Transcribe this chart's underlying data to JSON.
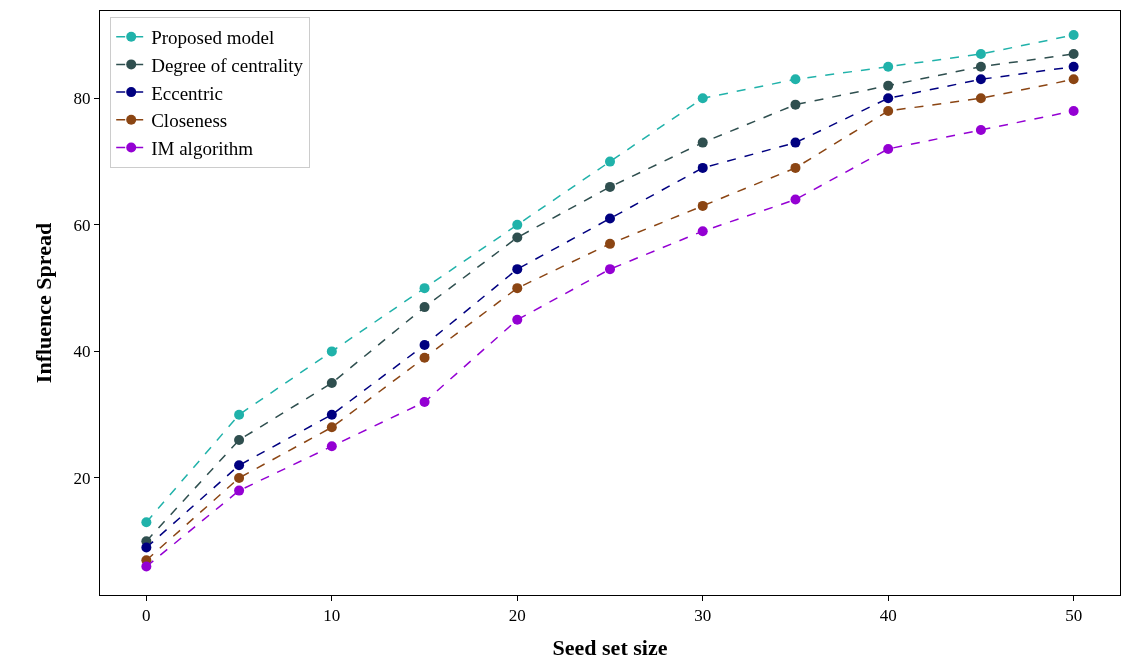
{
  "chart_data": {
    "type": "line",
    "xlabel": "Seed set size",
    "ylabel": "Influence Spread",
    "x": [
      0,
      5,
      10,
      15,
      20,
      25,
      30,
      35,
      40,
      45,
      50
    ],
    "xlim": [
      -2.5,
      52.5
    ],
    "xticks": [
      0,
      10,
      20,
      30,
      40,
      50
    ],
    "ylim": [
      1.5,
      93.8
    ],
    "yticks": [
      20,
      40,
      60,
      80
    ],
    "series": [
      {
        "name": "Proposed model",
        "color": "#20b2aa",
        "values": [
          13,
          30,
          40,
          50,
          60,
          70,
          80,
          83,
          85,
          87,
          90
        ]
      },
      {
        "name": "Degree of centrality",
        "color": "#2f4f4f",
        "values": [
          10,
          26,
          35,
          47,
          58,
          66,
          73,
          79,
          82,
          85,
          87
        ]
      },
      {
        "name": "Eccentric",
        "color": "#000080",
        "values": [
          9,
          22,
          30,
          41,
          53,
          61,
          69,
          73,
          80,
          83,
          85
        ]
      },
      {
        "name": "Closeness",
        "color": "#8b4513",
        "values": [
          7,
          20,
          28,
          39,
          50,
          57,
          63,
          69,
          78,
          80,
          83
        ]
      },
      {
        "name": "IM algorithm",
        "color": "#9400d3",
        "values": [
          6,
          18,
          25,
          32,
          45,
          53,
          59,
          64,
          72,
          75,
          78
        ]
      }
    ],
    "legend": "top left",
    "marker": "circle",
    "line_style": "dashed"
  }
}
